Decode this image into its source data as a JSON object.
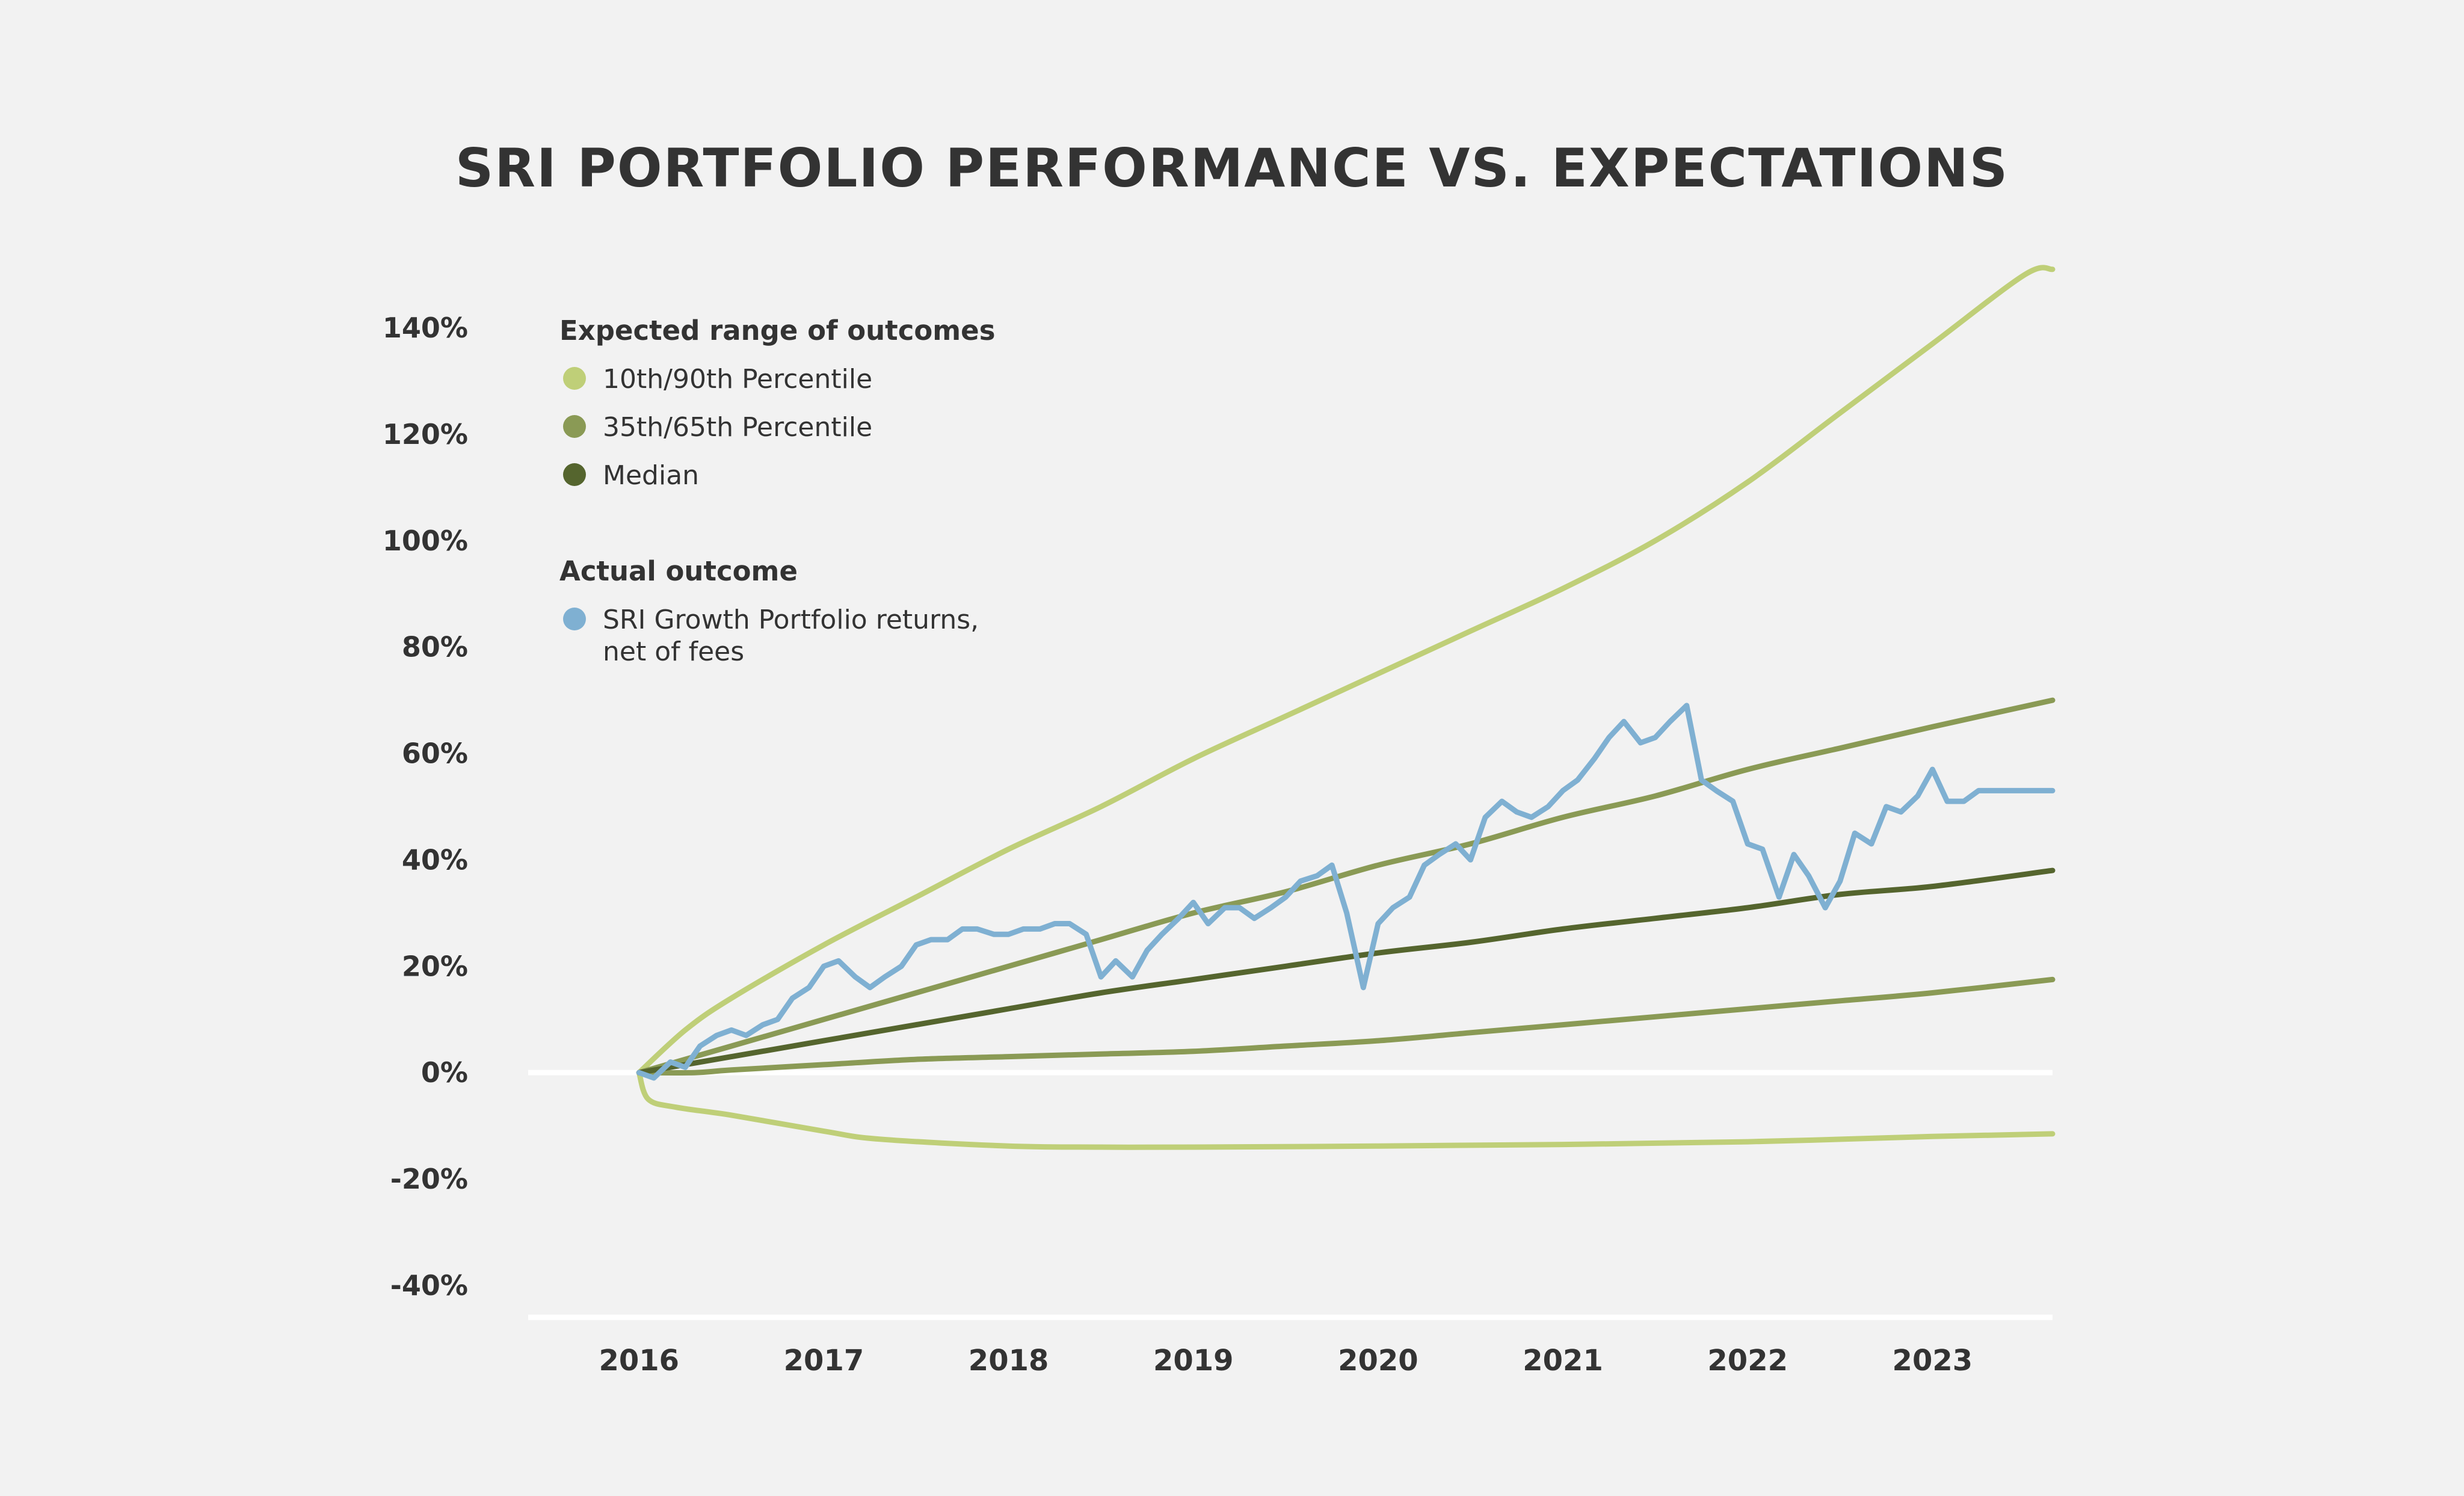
{
  "chart_data": {
    "type": "line",
    "title": "SRI PORTFOLIO PERFORMANCE VS. EXPECTATIONS",
    "xlabel": "",
    "ylabel": "",
    "x_ticks": [
      "2016",
      "2017",
      "2018",
      "2019",
      "2020",
      "2021",
      "2022",
      "2023"
    ],
    "y_ticks": [
      "140%",
      "120%",
      "100%",
      "80%",
      "60%",
      "40%",
      "20%",
      "0%",
      "-20%",
      "-40%"
    ],
    "xlim": [
      2015.4,
      2023.65
    ],
    "ylim": [
      -46,
      140
    ],
    "grid": false,
    "legend": {
      "placement": "top-left",
      "groups": [
        {
          "heading": "Expected range of outcomes",
          "items": [
            {
              "label": "10th/90th Percentile",
              "color": "#bfcf78"
            },
            {
              "label": "35th/65th Percentile",
              "color": "#8a9a55"
            },
            {
              "label": "Median",
              "color": "#55652e"
            }
          ]
        },
        {
          "heading": "Actual outcome",
          "items": [
            {
              "label_lines": [
                "SRI Growth Portfolio returns,",
                "net of fees"
              ],
              "color": "#7fb0d2"
            }
          ]
        }
      ]
    },
    "series": [
      {
        "name": "10th/90th Percentile",
        "color": "#bfcf78",
        "x": [
          2016.0,
          2016.25,
          2016.5,
          2017.0,
          2017.5,
          2018.0,
          2018.5,
          2019.0,
          2019.5,
          2020.0,
          2020.5,
          2021.0,
          2021.5,
          2022.0,
          2022.5,
          2023.0,
          2023.5,
          2023.65
        ],
        "y": [
          0,
          8,
          14,
          24,
          33,
          42,
          50,
          59,
          67,
          75,
          83,
          91,
          100,
          111,
          124,
          137,
          150,
          151
        ]
      },
      {
        "name": "10th/90th Percentile",
        "color": "#bfcf78",
        "x": [
          2016.0,
          2016.05,
          2016.2,
          2016.5,
          2017.0,
          2017.3,
          2018.0,
          2018.5,
          2019.0,
          2020.0,
          2021.0,
          2022.0,
          2023.0,
          2023.65
        ],
        "y": [
          0,
          -5,
          -6.5,
          -8,
          -11,
          -12.5,
          -13.8,
          -14,
          -14,
          -13.8,
          -13.5,
          -13,
          -12,
          -11.5
        ]
      },
      {
        "name": "35th/65th Percentile",
        "color": "#8a9a55",
        "x": [
          2016.0,
          2016.5,
          2017.0,
          2017.5,
          2018.0,
          2018.5,
          2019.0,
          2019.5,
          2020.0,
          2020.5,
          2021.0,
          2021.5,
          2022.0,
          2022.5,
          2023.0,
          2023.65
        ],
        "y": [
          0,
          5,
          10,
          15,
          20,
          25,
          30,
          34,
          39,
          43,
          48,
          52,
          57,
          61,
          65,
          70
        ]
      },
      {
        "name": "35th/65th Percentile",
        "color": "#8a9a55",
        "x": [
          2016.0,
          2016.3,
          2016.5,
          2017.0,
          2017.5,
          2018.0,
          2018.5,
          2019.0,
          2019.5,
          2020.0,
          2020.5,
          2021.0,
          2021.5,
          2022.0,
          2022.5,
          2023.0,
          2023.65
        ],
        "y": [
          0,
          0,
          0.5,
          1.5,
          2.5,
          3,
          3.5,
          4,
          5,
          6,
          7.5,
          9,
          10.5,
          12,
          13.5,
          15,
          17.5
        ]
      },
      {
        "name": "Median",
        "color": "#55652e",
        "x": [
          2016.0,
          2016.5,
          2017.0,
          2017.5,
          2018.0,
          2018.5,
          2019.0,
          2019.5,
          2020.0,
          2020.5,
          2021.0,
          2021.5,
          2022.0,
          2022.5,
          2023.0,
          2023.65
        ],
        "y": [
          0,
          3,
          6,
          9,
          12,
          15,
          17.5,
          20,
          22.5,
          24.5,
          27,
          29,
          31,
          33.5,
          35,
          38
        ]
      },
      {
        "name": "SRI Growth Portfolio returns, net of fees",
        "color": "#7fb0d2",
        "x": [
          2016.0,
          2016.08,
          2016.17,
          2016.25,
          2016.33,
          2016.42,
          2016.5,
          2016.58,
          2016.67,
          2016.75,
          2016.83,
          2016.92,
          2017.0,
          2017.08,
          2017.17,
          2017.25,
          2017.33,
          2017.42,
          2017.5,
          2017.58,
          2017.67,
          2017.75,
          2017.83,
          2017.92,
          2018.0,
          2018.08,
          2018.17,
          2018.25,
          2018.33,
          2018.42,
          2018.5,
          2018.58,
          2018.67,
          2018.75,
          2018.83,
          2018.92,
          2019.0,
          2019.08,
          2019.17,
          2019.25,
          2019.33,
          2019.42,
          2019.5,
          2019.58,
          2019.67,
          2019.75,
          2019.83,
          2019.92,
          2020.0,
          2020.08,
          2020.17,
          2020.25,
          2020.33,
          2020.42,
          2020.5,
          2020.58,
          2020.67,
          2020.75,
          2020.83,
          2020.92,
          2021.0,
          2021.08,
          2021.17,
          2021.25,
          2021.33,
          2021.42,
          2021.5,
          2021.58,
          2021.67,
          2021.75,
          2021.83,
          2021.92,
          2022.0,
          2022.08,
          2022.17,
          2022.25,
          2022.33,
          2022.42,
          2022.5,
          2022.58,
          2022.67,
          2022.75,
          2022.83,
          2022.92,
          2023.0,
          2023.08,
          2023.17,
          2023.25,
          2023.33,
          2023.42,
          2023.5,
          2023.65
        ],
        "y": [
          0,
          -1,
          2,
          1,
          5,
          7,
          8,
          7,
          9,
          10,
          14,
          16,
          20,
          21,
          18,
          16,
          18,
          20,
          24,
          25,
          25,
          27,
          27,
          26,
          26,
          27,
          27,
          28,
          28,
          26,
          18,
          21,
          18,
          23,
          26,
          29,
          32,
          28,
          31,
          31,
          29,
          31,
          33,
          36,
          37,
          39,
          30,
          16,
          28,
          31,
          33,
          39,
          41,
          43,
          40,
          48,
          51,
          49,
          48,
          50,
          53,
          55,
          59,
          63,
          66,
          62,
          63,
          66,
          69,
          55,
          53,
          51,
          43,
          42,
          33,
          41,
          37,
          31,
          36,
          45,
          43,
          50,
          49,
          52,
          57,
          51,
          51,
          53,
          53,
          53,
          53,
          53
        ]
      }
    ]
  }
}
